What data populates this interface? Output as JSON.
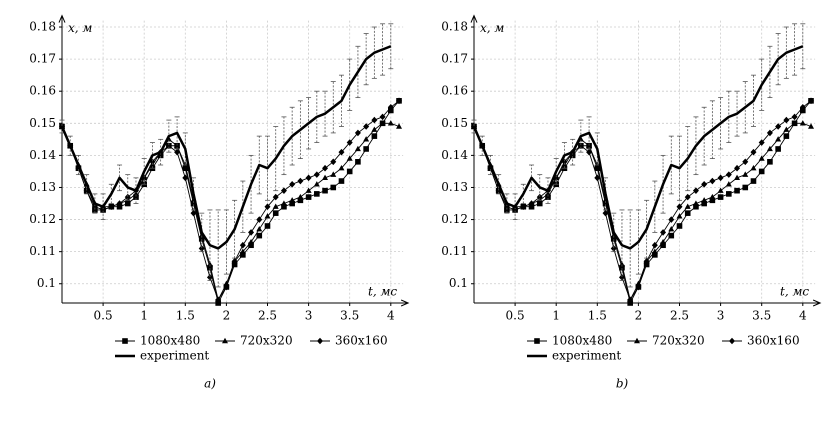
{
  "chart_data": [
    {
      "type": "line",
      "caption": "a)",
      "xlabel": "t, мс",
      "ylabel": "x, м",
      "xlim": [
        0,
        4.15
      ],
      "ylim": [
        0.094,
        0.182
      ],
      "xticks": [
        0.5,
        1,
        1.5,
        2,
        2.5,
        3,
        3.5,
        4
      ],
      "yticks": [
        0.1,
        0.11,
        0.12,
        0.13,
        0.14,
        0.15,
        0.16,
        0.17,
        0.18
      ],
      "grid": true,
      "x": [
        0,
        0.1,
        0.2,
        0.3,
        0.4,
        0.5,
        0.6,
        0.7,
        0.8,
        0.9,
        1.0,
        1.1,
        1.2,
        1.3,
        1.4,
        1.5,
        1.6,
        1.7,
        1.8,
        1.9,
        2.0,
        2.1,
        2.2,
        2.3,
        2.4,
        2.5,
        2.6,
        2.7,
        2.8,
        2.9,
        3.0,
        3.1,
        3.2,
        3.3,
        3.4,
        3.5,
        3.6,
        3.7,
        3.8,
        3.9,
        4.0,
        4.1
      ],
      "series": [
        {
          "name": "1080x480",
          "color": "#000",
          "marker": "square",
          "values": [
            0.149,
            0.143,
            0.136,
            0.129,
            0.123,
            0.123,
            0.124,
            0.124,
            0.125,
            0.127,
            0.131,
            0.136,
            0.14,
            0.143,
            0.143,
            0.136,
            0.125,
            0.114,
            0.105,
            0.094,
            0.099,
            0.106,
            0.109,
            0.112,
            0.115,
            0.118,
            0.122,
            0.124,
            0.125,
            0.126,
            0.127,
            0.128,
            0.129,
            0.13,
            0.132,
            0.135,
            0.138,
            0.142,
            0.146,
            0.15,
            0.154,
            0.157
          ]
        },
        {
          "name": "720x320",
          "color": "#000",
          "marker": "triangle",
          "values": [
            0.149,
            0.143,
            0.137,
            0.131,
            0.125,
            0.124,
            0.124,
            0.125,
            0.126,
            0.128,
            0.133,
            0.137,
            0.141,
            0.145,
            0.143,
            0.137,
            0.126,
            0.115,
            0.106,
            0.095,
            0.1,
            0.107,
            0.11,
            0.113,
            0.117,
            0.121,
            0.124,
            0.125,
            0.126,
            0.127,
            0.129,
            0.131,
            0.133,
            0.134,
            0.136,
            0.139,
            0.142,
            0.145,
            0.148,
            0.15,
            0.15,
            0.149
          ]
        },
        {
          "name": "360x160",
          "color": "#000",
          "marker": "diamond",
          "values": [
            0.149,
            0.143,
            0.136,
            0.129,
            0.124,
            0.123,
            0.124,
            0.125,
            0.127,
            0.129,
            0.133,
            0.138,
            0.141,
            0.143,
            0.141,
            0.133,
            0.122,
            0.111,
            0.102,
            0.095,
            0.099,
            0.107,
            0.112,
            0.116,
            0.12,
            0.124,
            0.127,
            0.129,
            0.131,
            0.132,
            0.133,
            0.134,
            0.136,
            0.138,
            0.141,
            0.144,
            0.147,
            0.149,
            0.151,
            0.152,
            0.155,
            0.157
          ]
        },
        {
          "name": "experiment",
          "color": "#000",
          "marker": "none",
          "line_width": 2.5,
          "values": [
            0.149,
            0.143,
            0.137,
            0.131,
            0.125,
            0.124,
            0.128,
            0.133,
            0.13,
            0.129,
            0.135,
            0.14,
            0.141,
            0.146,
            0.147,
            0.142,
            0.128,
            0.116,
            0.112,
            0.111,
            0.113,
            0.117,
            0.124,
            0.131,
            0.137,
            0.136,
            0.139,
            0.143,
            0.146,
            0.148,
            0.15,
            0.152,
            0.153,
            0.155,
            0.157,
            0.162,
            0.166,
            0.17,
            0.172,
            0.173,
            0.174,
            null
          ],
          "errors": [
            0.002,
            0.003,
            0.003,
            0.003,
            0.003,
            0.004,
            0.003,
            0.004,
            0.004,
            0.004,
            0.004,
            0.004,
            0.004,
            0.005,
            0.005,
            0.005,
            0.005,
            0.006,
            0.011,
            0.012,
            0.01,
            0.009,
            0.008,
            0.009,
            0.009,
            0.01,
            0.01,
            0.009,
            0.009,
            0.009,
            0.008,
            0.008,
            0.007,
            0.008,
            0.008,
            0.008,
            0.008,
            0.008,
            0.008,
            0.008,
            0.007,
            null
          ]
        }
      ]
    },
    {
      "type": "line",
      "caption": "b)",
      "xlabel": "t, мс",
      "ylabel": "x, м",
      "xlim": [
        0,
        4.15
      ],
      "ylim": [
        0.094,
        0.182
      ],
      "xticks": [
        0.5,
        1,
        1.5,
        2,
        2.5,
        3,
        3.5,
        4
      ],
      "yticks": [
        0.1,
        0.11,
        0.12,
        0.13,
        0.14,
        0.15,
        0.16,
        0.17,
        0.18
      ],
      "grid": true,
      "x": [
        0,
        0.1,
        0.2,
        0.3,
        0.4,
        0.5,
        0.6,
        0.7,
        0.8,
        0.9,
        1.0,
        1.1,
        1.2,
        1.3,
        1.4,
        1.5,
        1.6,
        1.7,
        1.8,
        1.9,
        2.0,
        2.1,
        2.2,
        2.3,
        2.4,
        2.5,
        2.6,
        2.7,
        2.8,
        2.9,
        3.0,
        3.1,
        3.2,
        3.3,
        3.4,
        3.5,
        3.6,
        3.7,
        3.8,
        3.9,
        4.0,
        4.1
      ],
      "series": [
        {
          "name": "1080x480",
          "color": "#000",
          "marker": "square",
          "values": [
            0.149,
            0.143,
            0.136,
            0.129,
            0.123,
            0.123,
            0.124,
            0.124,
            0.125,
            0.127,
            0.131,
            0.136,
            0.14,
            0.143,
            0.143,
            0.136,
            0.125,
            0.114,
            0.105,
            0.094,
            0.099,
            0.106,
            0.109,
            0.112,
            0.115,
            0.118,
            0.122,
            0.124,
            0.125,
            0.126,
            0.127,
            0.128,
            0.129,
            0.13,
            0.132,
            0.135,
            0.138,
            0.142,
            0.146,
            0.15,
            0.154,
            0.157
          ]
        },
        {
          "name": "720x320",
          "color": "#000",
          "marker": "triangle",
          "values": [
            0.149,
            0.143,
            0.137,
            0.131,
            0.125,
            0.124,
            0.124,
            0.125,
            0.126,
            0.128,
            0.133,
            0.137,
            0.141,
            0.145,
            0.143,
            0.137,
            0.126,
            0.115,
            0.106,
            0.095,
            0.1,
            0.107,
            0.11,
            0.113,
            0.117,
            0.121,
            0.124,
            0.125,
            0.126,
            0.127,
            0.129,
            0.131,
            0.133,
            0.134,
            0.136,
            0.139,
            0.142,
            0.145,
            0.148,
            0.15,
            0.15,
            0.149
          ]
        },
        {
          "name": "360x160",
          "color": "#000",
          "marker": "diamond",
          "values": [
            0.149,
            0.143,
            0.136,
            0.129,
            0.124,
            0.123,
            0.124,
            0.125,
            0.127,
            0.129,
            0.133,
            0.138,
            0.141,
            0.143,
            0.141,
            0.133,
            0.122,
            0.111,
            0.102,
            0.095,
            0.099,
            0.107,
            0.112,
            0.116,
            0.12,
            0.124,
            0.127,
            0.129,
            0.131,
            0.132,
            0.133,
            0.134,
            0.136,
            0.138,
            0.141,
            0.144,
            0.147,
            0.149,
            0.151,
            0.152,
            0.155,
            0.157
          ]
        },
        {
          "name": "experiment",
          "color": "#000",
          "marker": "none",
          "line_width": 2.5,
          "values": [
            0.149,
            0.143,
            0.137,
            0.131,
            0.125,
            0.124,
            0.128,
            0.133,
            0.13,
            0.129,
            0.135,
            0.14,
            0.141,
            0.146,
            0.147,
            0.142,
            0.128,
            0.116,
            0.112,
            0.111,
            0.113,
            0.117,
            0.124,
            0.131,
            0.137,
            0.136,
            0.139,
            0.143,
            0.146,
            0.148,
            0.15,
            0.152,
            0.153,
            0.155,
            0.157,
            0.162,
            0.166,
            0.17,
            0.172,
            0.173,
            0.174,
            null
          ],
          "errors": [
            0.002,
            0.003,
            0.003,
            0.003,
            0.003,
            0.004,
            0.003,
            0.004,
            0.004,
            0.004,
            0.004,
            0.004,
            0.004,
            0.005,
            0.005,
            0.005,
            0.005,
            0.006,
            0.011,
            0.012,
            0.01,
            0.009,
            0.008,
            0.009,
            0.009,
            0.01,
            0.01,
            0.009,
            0.009,
            0.009,
            0.008,
            0.008,
            0.007,
            0.008,
            0.008,
            0.008,
            0.008,
            0.008,
            0.008,
            0.008,
            0.007,
            null
          ]
        }
      ]
    }
  ]
}
